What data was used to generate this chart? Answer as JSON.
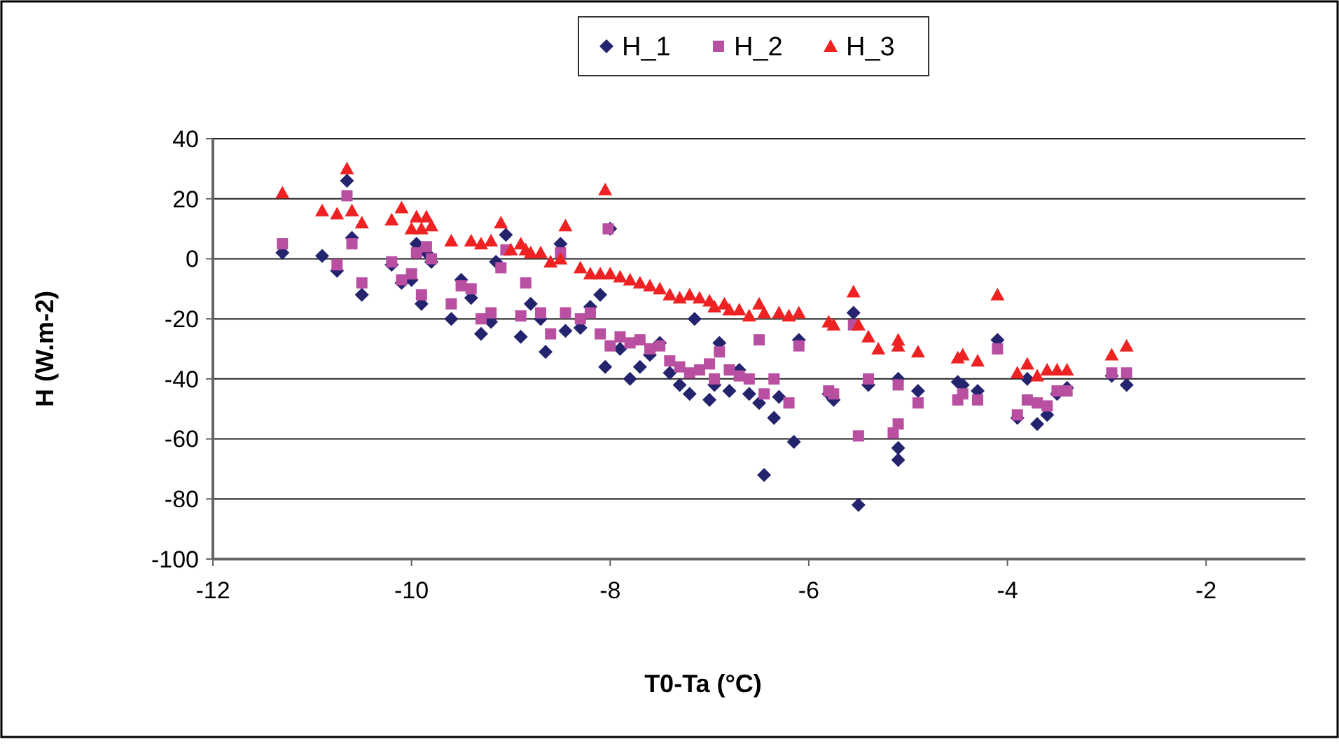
{
  "chart_data": {
    "type": "scatter",
    "xlabel": "T0-Ta (°C)",
    "ylabel": "H (W.m-2)",
    "xlim": [
      -12,
      -1
    ],
    "xticks": [
      -12,
      -10,
      -8,
      -6,
      -4,
      -2
    ],
    "ylim": [
      -100,
      40
    ],
    "yticks": [
      -100,
      -80,
      -60,
      -40,
      -20,
      0,
      20,
      40
    ],
    "grid": "y",
    "legend": "top",
    "series": [
      {
        "name": "H_1",
        "color": "#23236e",
        "marker": "diamond",
        "x": [
          -11.3,
          -10.9,
          -10.75,
          -10.65,
          -10.6,
          -10.5,
          -10.2,
          -10.1,
          -10.0,
          -9.95,
          -9.9,
          -9.85,
          -9.8,
          -9.6,
          -9.5,
          -9.4,
          -9.3,
          -9.2,
          -9.15,
          -9.05,
          -8.9,
          -8.8,
          -8.7,
          -8.65,
          -8.5,
          -8.45,
          -8.3,
          -8.2,
          -8.1,
          -8.05,
          -8.0,
          -7.9,
          -7.8,
          -7.7,
          -7.6,
          -7.5,
          -7.4,
          -7.3,
          -7.2,
          -7.15,
          -7.0,
          -6.95,
          -6.9,
          -6.8,
          -6.7,
          -6.6,
          -6.5,
          -6.45,
          -6.35,
          -6.3,
          -6.15,
          -6.1,
          -5.8,
          -5.75,
          -5.55,
          -5.5,
          -5.4,
          -5.1,
          -5.1,
          -5.1,
          -4.9,
          -4.5,
          -4.45,
          -4.3,
          -4.1,
          -3.9,
          -3.8,
          -3.7,
          -3.6,
          -3.5,
          -3.4,
          -2.95,
          -2.8
        ],
        "values": [
          2,
          1,
          -4,
          26,
          7,
          -12,
          -2,
          -8,
          -7,
          5,
          -15,
          2,
          -1,
          -20,
          -7,
          -13,
          -25,
          -21,
          -1,
          8,
          -26,
          -15,
          -20,
          -31,
          5,
          -24,
          -23,
          -16,
          -12,
          -36,
          10,
          -30,
          -40,
          -36,
          -32,
          -28,
          -38,
          -42,
          -45,
          -20,
          -47,
          -42,
          -28,
          -44,
          -37,
          -45,
          -48,
          -72,
          -53,
          -46,
          -61,
          -27,
          -45,
          -47,
          -18,
          -82,
          -42,
          -67,
          -63,
          -40,
          -44,
          -41,
          -42,
          -44,
          -27,
          -53,
          -40,
          -55,
          -52,
          -45,
          -43,
          -39,
          -42
        ]
      },
      {
        "name": "H_2",
        "color": "#b84fa0",
        "marker": "square",
        "x": [
          -11.3,
          -10.75,
          -10.65,
          -10.6,
          -10.5,
          -10.2,
          -10.1,
          -10.0,
          -9.95,
          -9.9,
          -9.85,
          -9.8,
          -9.6,
          -9.5,
          -9.4,
          -9.3,
          -9.2,
          -9.1,
          -9.05,
          -8.9,
          -8.85,
          -8.7,
          -8.6,
          -8.5,
          -8.45,
          -8.3,
          -8.2,
          -8.1,
          -8.0,
          -8.02,
          -7.9,
          -7.8,
          -7.7,
          -7.6,
          -7.5,
          -7.4,
          -7.3,
          -7.2,
          -7.1,
          -7.0,
          -6.95,
          -6.9,
          -6.8,
          -6.7,
          -6.6,
          -6.5,
          -6.45,
          -6.35,
          -6.2,
          -6.1,
          -5.8,
          -5.75,
          -5.55,
          -5.5,
          -5.4,
          -5.15,
          -5.1,
          -5.1,
          -4.9,
          -4.5,
          -4.45,
          -4.3,
          -4.1,
          -3.9,
          -3.8,
          -3.7,
          -3.6,
          -3.5,
          -3.4,
          -2.95,
          -2.8
        ],
        "values": [
          5,
          -2,
          21,
          5,
          -8,
          -1,
          -7,
          -5,
          2,
          -12,
          4,
          0,
          -15,
          -9,
          -10,
          -20,
          -18,
          -3,
          3,
          -19,
          -8,
          -18,
          -25,
          2,
          -18,
          -20,
          -18,
          -25,
          -29,
          10,
          -26,
          -28,
          -27,
          -30,
          -29,
          -34,
          -36,
          -38,
          -37,
          -35,
          -40,
          -31,
          -37,
          -39,
          -40,
          -27,
          -45,
          -40,
          -48,
          -29,
          -44,
          -45,
          -22,
          -59,
          -40,
          -58,
          -55,
          -42,
          -48,
          -47,
          -45,
          -47,
          -30,
          -52,
          -47,
          -48,
          -49,
          -44,
          -44,
          -38,
          -38
        ]
      },
      {
        "name": "H_3",
        "color": "#ee2222",
        "marker": "triangle",
        "x": [
          -11.3,
          -10.9,
          -10.75,
          -10.65,
          -10.6,
          -10.5,
          -10.2,
          -10.1,
          -10.0,
          -9.95,
          -9.9,
          -9.85,
          -9.8,
          -9.6,
          -9.4,
          -9.3,
          -9.2,
          -9.1,
          -9.0,
          -8.9,
          -8.85,
          -8.8,
          -8.7,
          -8.6,
          -8.5,
          -8.45,
          -8.3,
          -8.2,
          -8.1,
          -8.05,
          -8.0,
          -7.9,
          -7.8,
          -7.7,
          -7.6,
          -7.5,
          -7.4,
          -7.3,
          -7.2,
          -7.1,
          -7.0,
          -6.95,
          -6.85,
          -6.8,
          -6.7,
          -6.6,
          -6.5,
          -6.45,
          -6.3,
          -6.2,
          -6.1,
          -5.8,
          -5.75,
          -5.55,
          -5.5,
          -5.4,
          -5.3,
          -5.1,
          -5.1,
          -4.9,
          -4.5,
          -4.45,
          -4.3,
          -4.1,
          -3.9,
          -3.8,
          -3.7,
          -3.6,
          -3.5,
          -3.4,
          -2.95,
          -2.8
        ],
        "values": [
          22,
          16,
          15,
          30,
          16,
          12,
          13,
          17,
          10,
          14,
          10,
          14,
          11,
          6,
          6,
          5,
          6,
          12,
          3,
          5,
          3,
          2,
          2,
          -1,
          0,
          11,
          -3,
          -5,
          -5,
          23,
          -5,
          -6,
          -7,
          -8,
          -9,
          -10,
          -12,
          -13,
          -12,
          -13,
          -14,
          -16,
          -15,
          -17,
          -17,
          -19,
          -15,
          -18,
          -18,
          -19,
          -18,
          -21,
          -22,
          -11,
          -22,
          -26,
          -30,
          -27,
          -29,
          -31,
          -33,
          -32,
          -34,
          -12,
          -38,
          -35,
          -39,
          -37,
          -37,
          -37,
          -32,
          -29
        ]
      }
    ]
  }
}
